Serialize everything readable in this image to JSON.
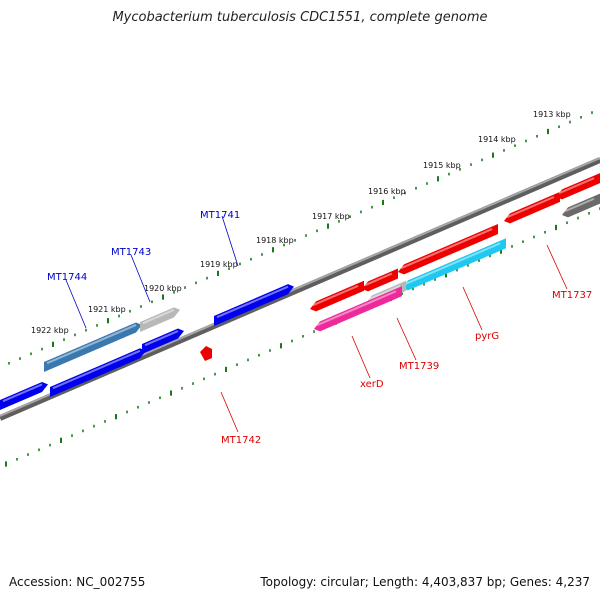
{
  "title": "Mycobacterium tuberculosis CDC1551, complete genome",
  "footer": {
    "accession": "Accession: NC_002755",
    "summary": "Topology: circular; Length: 4,403,837 bp; Genes: 4,237"
  },
  "colors": {
    "forward_gene": "#0000ee",
    "reverse_gene": "#ee0000",
    "forward_label": "#0000cc",
    "reverse_label": "#dd0000",
    "tick": "#1a7a1a",
    "backbone": "#8a8a8a",
    "rna_like": "#3a78b0",
    "pyrG_gene": "#1ec8f0",
    "xerD_gene": "#ee2a9a",
    "other_gene": "#b8b8b8",
    "dark_gene": "#6a6a6a"
  },
  "scale_labels": [
    "1913 kbp",
    "1914 kbp",
    "1915 kbp",
    "1916 kbp",
    "1917 kbp",
    "1918 kbp",
    "1919 kbp",
    "1920 kbp",
    "1921 kbp",
    "1922 kbp"
  ],
  "forward_labels": [
    "MT1741",
    "MT1743",
    "MT1744"
  ],
  "reverse_labels": [
    "MT1737",
    "pyrG",
    "MT1739",
    "xerD",
    "MT1742"
  ]
}
